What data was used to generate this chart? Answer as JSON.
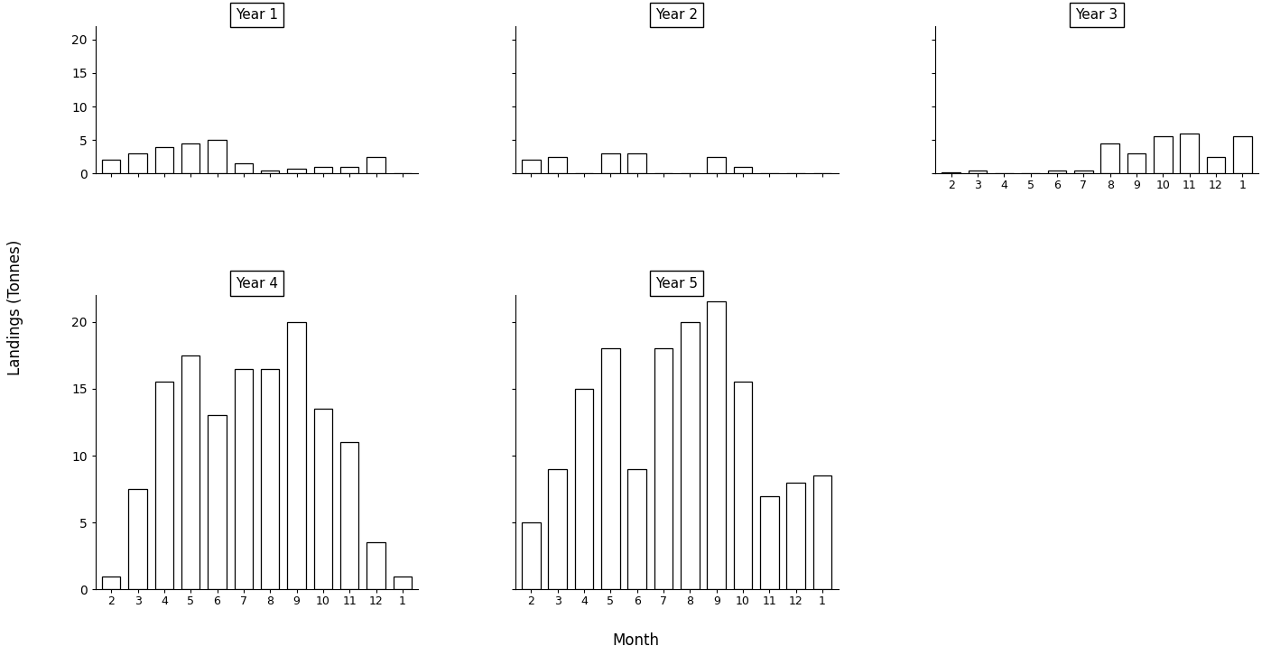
{
  "months": [
    "2",
    "3",
    "4",
    "5",
    "6",
    "7",
    "8",
    "9",
    "10",
    "11",
    "12",
    "1"
  ],
  "year1": [
    2.0,
    3.0,
    4.0,
    4.5,
    5.0,
    1.5,
    0.5,
    0.7,
    1.0,
    1.0,
    2.5,
    0.0
  ],
  "year2": [
    2.0,
    2.5,
    0.0,
    3.0,
    3.0,
    0.0,
    0.0,
    2.5,
    1.0,
    0.0,
    0.0,
    0.0
  ],
  "year3": [
    0.2,
    0.4,
    0.1,
    0.0,
    0.5,
    0.5,
    4.5,
    3.0,
    5.5,
    6.0,
    2.5,
    5.5
  ],
  "year4": [
    1.0,
    7.5,
    15.5,
    17.5,
    13.0,
    16.5,
    16.5,
    20.0,
    13.5,
    11.0,
    3.5,
    1.0
  ],
  "year5": [
    5.0,
    9.0,
    15.0,
    18.0,
    9.0,
    18.0,
    20.0,
    21.5,
    15.5,
    7.0,
    8.0,
    8.5
  ],
  "ylim": 22,
  "yticks": [
    0,
    5,
    10,
    15,
    20
  ],
  "ylabel": "Landings (Tonnes)",
  "xlabel": "Month",
  "bar_color": "white",
  "bar_edgecolor": "black",
  "background_color": "white",
  "titles": [
    "Year 1",
    "Year 2",
    "Year 3",
    "Year 4",
    "Year 5"
  ]
}
